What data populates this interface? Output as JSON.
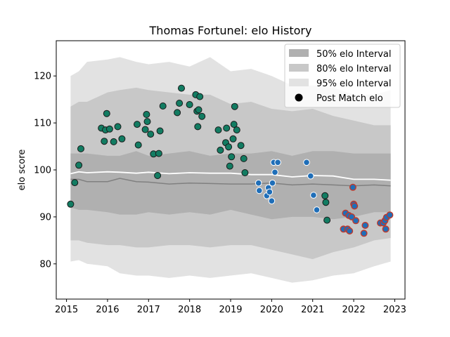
{
  "chart_data": {
    "type": "scatter",
    "title": "Thomas Fortunel: elo History",
    "xlabel": "",
    "ylabel": "elo score",
    "xlim": [
      2014.75,
      2023.25
    ],
    "ylim": [
      72.5,
      127.5
    ],
    "xticks": [
      2015,
      2016,
      2017,
      2018,
      2019,
      2020,
      2021,
      2022,
      2023
    ],
    "yticks": [
      80,
      90,
      100,
      110,
      120
    ],
    "legend_position": "top-right",
    "legend": [
      {
        "label": "50% elo Interval",
        "kind": "patch",
        "color": "#b0b0b0"
      },
      {
        "label": "80% elo Interval",
        "kind": "patch",
        "color": "#c8c8c8"
      },
      {
        "label": "95% elo Interval",
        "kind": "patch",
        "color": "#e2e2e2"
      },
      {
        "label": "Post Match elo",
        "kind": "marker",
        "color": "#000000"
      }
    ],
    "colors": {
      "band95": "#e2e2e2",
      "band80": "#c8c8c8",
      "band50": "#b0b0b0",
      "white_line": "#ffffff",
      "median_line": "#808080",
      "green_point": "#127c62",
      "blue_point": "#1f6eb8",
      "blue_red_edge": "#c0392b"
    },
    "bands": {
      "x": [
        2015.1,
        2015.3,
        2015.5,
        2016.0,
        2016.3,
        2016.7,
        2017.0,
        2017.5,
        2018.0,
        2018.5,
        2019.0,
        2019.5,
        2020.0,
        2020.5,
        2021.0,
        2021.5,
        2022.0,
        2022.5,
        2022.9
      ],
      "lo95": [
        80.5,
        80.8,
        80.0,
        79.5,
        78.0,
        77.5,
        77.5,
        77.0,
        77.5,
        77.0,
        77.5,
        78.0,
        77.0,
        76.0,
        76.5,
        77.5,
        78.0,
        79.5,
        80.5
      ],
      "lo80": [
        85.0,
        85.0,
        84.5,
        84.0,
        84.0,
        83.5,
        83.5,
        84.0,
        84.0,
        83.5,
        84.0,
        84.0,
        83.0,
        82.0,
        81.0,
        82.5,
        83.5,
        85.0,
        85.5
      ],
      "lo50": [
        92.0,
        91.5,
        91.5,
        91.0,
        90.5,
        90.5,
        91.0,
        90.5,
        91.0,
        90.5,
        91.5,
        90.5,
        89.5,
        90.0,
        90.0,
        89.5,
        90.0,
        91.0,
        91.0
      ],
      "hi50": [
        103.5,
        103.5,
        103.5,
        103.0,
        103.0,
        104.0,
        103.0,
        103.5,
        104.0,
        103.0,
        103.5,
        103.5,
        104.0,
        103.0,
        104.0,
        104.0,
        103.5,
        103.5,
        103.5
      ],
      "hi80": [
        113.5,
        114.5,
        114.5,
        116.5,
        117.0,
        117.5,
        117.0,
        116.5,
        116.0,
        116.0,
        114.0,
        114.5,
        113.0,
        112.5,
        113.0,
        111.5,
        110.5,
        109.5,
        109.5
      ],
      "hi95": [
        120.0,
        121.0,
        123.0,
        123.5,
        124.0,
        123.0,
        122.5,
        123.0,
        122.0,
        124.0,
        121.0,
        121.5,
        120.0,
        118.0,
        118.0,
        117.5,
        116.0,
        116.0,
        117.0
      ],
      "white": [
        99.2,
        99.6,
        99.4,
        99.6,
        99.5,
        99.3,
        99.5,
        99.2,
        99.4,
        99.3,
        99.3,
        99.0,
        99.0,
        98.5,
        98.8,
        98.7,
        98.0,
        98.0,
        97.8
      ],
      "grey": [
        98.0,
        98.0,
        97.5,
        97.5,
        98.2,
        97.5,
        97.4,
        97.0,
        97.2,
        97.1,
        97.0,
        97.0,
        97.2,
        96.8,
        97.0,
        96.8,
        96.6,
        96.8,
        96.6
      ]
    },
    "green_points": [
      [
        2015.1,
        92.7
      ],
      [
        2015.2,
        97.3
      ],
      [
        2015.3,
        101.0
      ],
      [
        2015.35,
        104.5
      ],
      [
        2015.85,
        108.9
      ],
      [
        2015.92,
        106.1
      ],
      [
        2015.95,
        108.5
      ],
      [
        2015.98,
        112.0
      ],
      [
        2016.05,
        108.7
      ],
      [
        2016.15,
        106.0
      ],
      [
        2016.25,
        109.2
      ],
      [
        2016.35,
        106.6
      ],
      [
        2016.72,
        109.7
      ],
      [
        2016.75,
        105.3
      ],
      [
        2016.92,
        108.6
      ],
      [
        2016.95,
        111.8
      ],
      [
        2016.97,
        110.3
      ],
      [
        2017.05,
        107.6
      ],
      [
        2017.12,
        103.4
      ],
      [
        2017.22,
        98.8
      ],
      [
        2017.25,
        103.5
      ],
      [
        2017.28,
        108.3
      ],
      [
        2017.35,
        113.6
      ],
      [
        2017.7,
        112.2
      ],
      [
        2017.75,
        114.2
      ],
      [
        2017.8,
        117.4
      ],
      [
        2018.0,
        113.9
      ],
      [
        2018.15,
        116.0
      ],
      [
        2018.18,
        112.5
      ],
      [
        2018.2,
        109.2
      ],
      [
        2018.22,
        112.8
      ],
      [
        2018.25,
        115.6
      ],
      [
        2018.3,
        111.4
      ],
      [
        2018.7,
        108.5
      ],
      [
        2018.75,
        104.2
      ],
      [
        2018.88,
        105.8
      ],
      [
        2018.9,
        108.9
      ],
      [
        2018.95,
        104.9
      ],
      [
        2018.98,
        100.8
      ],
      [
        2019.02,
        102.8
      ],
      [
        2019.06,
        106.6
      ],
      [
        2019.08,
        109.7
      ],
      [
        2019.1,
        113.5
      ],
      [
        2019.15,
        108.5
      ],
      [
        2019.25,
        105.2
      ],
      [
        2019.32,
        102.4
      ],
      [
        2019.35,
        99.4
      ],
      [
        2021.3,
        94.5
      ],
      [
        2021.32,
        93.1
      ],
      [
        2021.35,
        89.3
      ]
    ],
    "blue_points": [
      [
        2019.68,
        97.2
      ],
      [
        2019.7,
        95.6
      ],
      [
        2019.88,
        94.5
      ],
      [
        2019.92,
        96.2
      ],
      [
        2019.95,
        95.3
      ],
      [
        2020.0,
        93.4
      ],
      [
        2020.02,
        97.2
      ],
      [
        2020.05,
        101.6
      ],
      [
        2020.08,
        99.5
      ],
      [
        2020.15,
        101.6
      ],
      [
        2020.85,
        101.6
      ],
      [
        2020.95,
        98.7
      ],
      [
        2021.02,
        94.6
      ],
      [
        2021.1,
        91.5
      ]
    ],
    "blue_red_points": [
      [
        2021.75,
        87.4
      ],
      [
        2021.8,
        90.8
      ],
      [
        2021.85,
        87.4
      ],
      [
        2021.88,
        90.3
      ],
      [
        2021.9,
        87.0
      ],
      [
        2021.95,
        90.0
      ],
      [
        2021.98,
        96.3
      ],
      [
        2022.0,
        92.7
      ],
      [
        2022.02,
        92.3
      ],
      [
        2022.05,
        89.2
      ],
      [
        2022.25,
        86.5
      ],
      [
        2022.28,
        88.2
      ],
      [
        2022.65,
        88.7
      ],
      [
        2022.72,
        88.7
      ],
      [
        2022.76,
        89.2
      ],
      [
        2022.78,
        87.4
      ],
      [
        2022.8,
        89.9
      ],
      [
        2022.88,
        90.4
      ]
    ]
  }
}
